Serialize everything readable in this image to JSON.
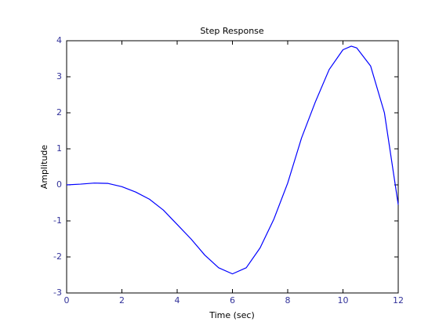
{
  "chart_data": {
    "type": "line",
    "title": "Step Response",
    "xlabel": "Time (sec)",
    "ylabel": "Amplitude",
    "x": [
      0,
      0.5,
      1,
      1.5,
      2,
      2.5,
      3,
      3.5,
      4,
      4.5,
      5,
      5.5,
      6,
      6.5,
      7,
      7.5,
      8,
      8.5,
      9,
      9.5,
      10,
      10.3,
      10.5,
      11,
      11.5,
      12
    ],
    "values": [
      0,
      0.02,
      0.05,
      0.04,
      -0.05,
      -0.2,
      -0.4,
      -0.7,
      -1.1,
      -1.5,
      -1.95,
      -2.3,
      -2.47,
      -2.3,
      -1.75,
      -0.95,
      0.05,
      1.3,
      2.3,
      3.2,
      3.75,
      3.85,
      3.8,
      3.3,
      2.0,
      -0.55
    ],
    "color": "#0000ff",
    "xlim": [
      0,
      12
    ],
    "xticks": [
      0,
      2,
      4,
      6,
      8,
      10,
      12
    ],
    "ylim": [
      -3,
      4
    ],
    "yticks": [
      -3,
      -2,
      -1,
      0,
      1,
      2,
      3,
      4
    ]
  }
}
